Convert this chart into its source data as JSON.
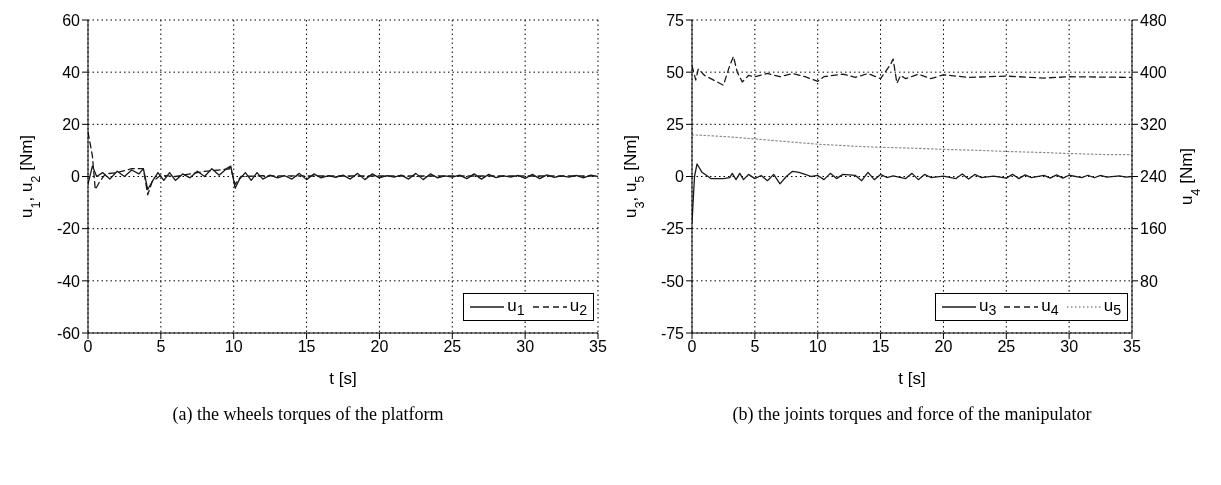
{
  "chart_data": [
    {
      "type": "line",
      "title": "(a)  the wheels torques of the platform",
      "xlabel": "t [s]",
      "ylabel": "u$_{1}$, u$_{2}$ [Nm]",
      "xlim": [
        0,
        35
      ],
      "xticks": [
        0,
        5,
        10,
        15,
        20,
        25,
        30,
        35
      ],
      "ylim": [
        -60,
        60
      ],
      "yticks": [
        -60,
        -40,
        -20,
        0,
        20,
        40,
        60
      ],
      "grid": true,
      "legend": "bottom right",
      "series": [
        {
          "name": "u$_{1}$",
          "color": "#1a1a1a",
          "line_style": "solid",
          "x": [
            0,
            0.3,
            0.6,
            1,
            1.5,
            2,
            2.5,
            3,
            3.5,
            3.8,
            4.1,
            4.4,
            4.8,
            5.2,
            5.6,
            6,
            6.5,
            7,
            7.5,
            8,
            8.5,
            9,
            9.5,
            9.8,
            10.1,
            10.4,
            10.8,
            11.2,
            11.6,
            12,
            12.5,
            13,
            13.5,
            14,
            14.5,
            15,
            15.5,
            16,
            16.5,
            17,
            17.5,
            18,
            18.5,
            19,
            19.5,
            20,
            20.5,
            21,
            21.5,
            22,
            22.5,
            23,
            23.5,
            24,
            24.5,
            25,
            25.5,
            26,
            26.5,
            27,
            27.5,
            28,
            28.5,
            29,
            29.5,
            30,
            30.5,
            31,
            31.5,
            32,
            32.5,
            33,
            33.5,
            34,
            34.5,
            35
          ],
          "values": [
            -3,
            4,
            0,
            1.5,
            -1,
            2,
            0,
            2.5,
            1,
            3,
            -5,
            -2,
            1.5,
            -1.5,
            1.5,
            -1.5,
            1,
            -0.5,
            2,
            0,
            3,
            0.5,
            3,
            4,
            -4.5,
            -1,
            1.5,
            -1.5,
            1.5,
            -1,
            0.5,
            -0.5,
            0.3,
            -1,
            1.2,
            -1.2,
            1,
            -0.5,
            0.3,
            -0.3,
            0.5,
            -1,
            1.2,
            -1.2,
            1,
            -0.5,
            0.3,
            -0.2,
            0.5,
            -1,
            1.2,
            -1.2,
            1,
            -0.5,
            0.2,
            -0.2,
            0.5,
            -0.8,
            1,
            -1,
            0.8,
            -0.4,
            0.2,
            -0.2,
            0.4,
            -0.7,
            0.8,
            -0.8,
            0.6,
            -0.3,
            0.2,
            -0.2,
            0.4,
            -0.5,
            0.5,
            0
          ]
        },
        {
          "name": "u$_{2}$",
          "color": "#1a1a1a",
          "line_style": "dashed",
          "x": [
            0,
            0.3,
            0.5,
            0.8,
            1.2,
            2,
            3,
            3.8,
            4.1,
            4.4,
            5,
            6,
            7,
            8,
            9,
            9.8,
            10.1,
            10.5,
            12,
            15,
            20,
            25,
            30,
            35
          ],
          "values": [
            17,
            8,
            -5,
            -2,
            1,
            1.5,
            3,
            3,
            -7,
            -2,
            0.5,
            0,
            1,
            2,
            2.5,
            3,
            -3,
            0,
            0.3,
            0.2,
            0.2,
            0.2,
            0.2,
            0.2
          ]
        }
      ]
    },
    {
      "type": "line",
      "title": "(b)  the joints torques and force of the manipulator",
      "xlabel": "t [s]",
      "ylabel": "u$_{3}$, u$_{5}$ [Nm]",
      "y2label": "u$_{4}$ [Nm]",
      "xlim": [
        0,
        35
      ],
      "xticks": [
        0,
        5,
        10,
        15,
        20,
        25,
        30,
        35
      ],
      "ylim": [
        -75,
        75
      ],
      "yticks": [
        -75,
        -50,
        -25,
        0,
        25,
        50,
        75
      ],
      "y2lim": [
        0,
        480
      ],
      "y2ticks": [
        80,
        160,
        240,
        320,
        400,
        480
      ],
      "grid": true,
      "legend": "bottom right",
      "series": [
        {
          "name": "u$_{3}$",
          "color": "#1a1a1a",
          "line_style": "solid",
          "x": [
            0,
            0.2,
            0.4,
            0.8,
            1.5,
            2.5,
            3,
            3.2,
            3.5,
            3.8,
            4.1,
            4.5,
            5,
            5.5,
            6,
            6.5,
            7,
            7.5,
            8,
            8.5,
            9,
            9.5,
            10,
            10.5,
            11,
            11.5,
            12,
            13,
            13.5,
            14,
            14.5,
            15,
            15.5,
            16,
            17,
            17.5,
            18,
            18.5,
            19,
            20,
            21,
            21.5,
            22,
            22.5,
            23,
            24,
            25,
            25.5,
            26,
            26.5,
            27,
            28,
            28.5,
            29,
            29.5,
            30,
            31,
            31.5,
            32,
            32.5,
            33,
            34,
            34.5,
            35
          ],
          "values": [
            -22,
            0,
            6,
            2,
            -1,
            -1,
            -0.5,
            1.5,
            -1.5,
            1.5,
            -1.5,
            1,
            -1,
            0.5,
            -2,
            1,
            -3.5,
            0,
            2.5,
            2,
            1,
            0,
            0.5,
            -1.5,
            1.5,
            -1,
            1,
            0.5,
            -2,
            2,
            -1.5,
            1,
            -0.5,
            0.3,
            -1,
            1.5,
            -1.5,
            1,
            -0.5,
            0.2,
            -1,
            1.2,
            -1.2,
            1,
            -0.5,
            0.2,
            -0.8,
            1,
            -1,
            0.8,
            -0.5,
            0.5,
            -0.8,
            0.8,
            -0.8,
            0.6,
            -0.5,
            0.6,
            -0.6,
            0.5,
            -0.3,
            0.3,
            -0.3,
            0
          ]
        },
        {
          "name": "u$_{4}$",
          "color": "#1a1a1a",
          "line_style": "dashed",
          "axis": "y2",
          "x": [
            0,
            0.3,
            0.5,
            1,
            1.5,
            2,
            2.5,
            3,
            3.3,
            3.6,
            4,
            4.5,
            5,
            6,
            7,
            8,
            9,
            10,
            10.5,
            12,
            13,
            14,
            15,
            15.8,
            16,
            16.3,
            16.6,
            17,
            18,
            19,
            20,
            22,
            25,
            28,
            30,
            35
          ],
          "values": [
            410,
            388,
            405,
            395,
            390,
            385,
            380,
            410,
            424,
            400,
            385,
            395,
            393,
            398,
            393,
            398,
            393,
            386,
            393,
            397,
            392,
            398,
            390,
            412,
            420,
            383,
            395,
            390,
            397,
            390,
            396,
            392,
            394,
            391,
            393,
            392
          ]
        },
        {
          "name": "u$_{5}$",
          "color": "#8c8c8c",
          "line_style": "dotted",
          "x": [
            0,
            3,
            5,
            8,
            10,
            13,
            15,
            18,
            20,
            23,
            25,
            28,
            30,
            33,
            35
          ],
          "values": [
            20,
            19,
            18,
            16.5,
            15.5,
            14.5,
            14,
            13.5,
            13,
            12.5,
            12,
            11.5,
            11,
            10.5,
            10.5
          ]
        }
      ]
    }
  ]
}
